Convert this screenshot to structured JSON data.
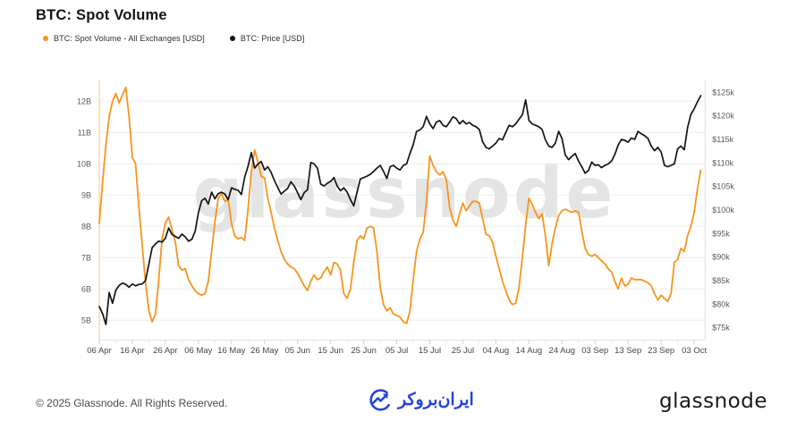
{
  "header": {
    "title": "BTC: Spot Volume"
  },
  "legend": [
    {
      "label": "BTC: Spot Volume - All Exchanges [USD]",
      "color": "#f7941d"
    },
    {
      "label": "BTC: Price [USD]",
      "color": "#141414"
    }
  ],
  "watermark": "glassnode",
  "footer": {
    "copyright": "© 2025 Glassnode. All Rights Reserved.",
    "center_logo_text": "ایران‌بروکر",
    "center_logo_color": "#2342df",
    "brand_wordmark": "glassnode"
  },
  "chart_data": {
    "type": "line",
    "title": "BTC: Spot Volume",
    "grid": "horizontal",
    "legend_position": "top-left",
    "x_unit": "date (2025)",
    "x_ticks": [
      {
        "label": "06 Apr",
        "day": 0
      },
      {
        "label": "16 Apr",
        "day": 10
      },
      {
        "label": "26 Apr",
        "day": 20
      },
      {
        "label": "06 May",
        "day": 30
      },
      {
        "label": "16 May",
        "day": 40
      },
      {
        "label": "26 May",
        "day": 50
      },
      {
        "label": "05 Jun",
        "day": 60
      },
      {
        "label": "15 Jun",
        "day": 70
      },
      {
        "label": "25 Jun",
        "day": 80
      },
      {
        "label": "05 Jul",
        "day": 90
      },
      {
        "label": "15 Jul",
        "day": 100
      },
      {
        "label": "25 Jul",
        "day": 110
      },
      {
        "label": "04 Aug",
        "day": 120
      },
      {
        "label": "14 Aug",
        "day": 130
      },
      {
        "label": "24 Aug",
        "day": 140
      },
      {
        "label": "03 Sep",
        "day": 150
      },
      {
        "label": "13 Sep",
        "day": 160
      },
      {
        "label": "23 Sep",
        "day": 170
      },
      {
        "label": "03 Oct",
        "day": 180
      }
    ],
    "days_total": 182,
    "y_left": {
      "title": "Spot Volume (USD)",
      "min": 5,
      "max": 12.6,
      "ticks": [
        {
          "label": "5B",
          "value": 5
        },
        {
          "label": "6B",
          "value": 6
        },
        {
          "label": "7B",
          "value": 7
        },
        {
          "label": "8B",
          "value": 8
        },
        {
          "label": "9B",
          "value": 9
        },
        {
          "label": "10B",
          "value": 10
        },
        {
          "label": "11B",
          "value": 11
        },
        {
          "label": "12B",
          "value": 12
        }
      ]
    },
    "y_right": {
      "title": "Price (USD)",
      "min": 75,
      "max": 125,
      "ticks": [
        {
          "label": "$75k",
          "value": 75
        },
        {
          "label": "$80k",
          "value": 80
        },
        {
          "label": "$85k",
          "value": 85
        },
        {
          "label": "$90k",
          "value": 90
        },
        {
          "label": "$95k",
          "value": 95
        },
        {
          "label": "$100k",
          "value": 100
        },
        {
          "label": "$105k",
          "value": 105
        },
        {
          "label": "$110k",
          "value": 110
        },
        {
          "label": "$115k",
          "value": 115
        },
        {
          "label": "$120k",
          "value": 120
        },
        {
          "label": "$125k",
          "value": 125
        }
      ]
    },
    "series": [
      {
        "name": "BTC: Spot Volume - All Exchanges [USD]",
        "color": "#f7941d",
        "axis": "left",
        "unit": "billion USD",
        "values": [
          8.1,
          9.4,
          10.6,
          11.5,
          12.0,
          12.25,
          11.95,
          12.2,
          12.45,
          11.5,
          10.2,
          10.0,
          8.6,
          7.4,
          6.2,
          5.3,
          4.95,
          5.2,
          6.3,
          7.6,
          8.1,
          8.3,
          7.9,
          7.5,
          6.75,
          6.6,
          6.65,
          6.3,
          6.1,
          5.95,
          5.85,
          5.8,
          5.85,
          6.25,
          7.2,
          8.15,
          8.9,
          9.05,
          8.8,
          8.85,
          8.1,
          7.7,
          7.6,
          7.65,
          7.55,
          8.55,
          9.75,
          10.45,
          10.05,
          9.6,
          9.55,
          8.9,
          8.45,
          7.95,
          7.55,
          7.2,
          6.95,
          6.8,
          6.7,
          6.65,
          6.5,
          6.3,
          6.1,
          5.95,
          6.25,
          6.45,
          6.3,
          6.35,
          6.55,
          6.7,
          6.45,
          6.85,
          6.8,
          6.6,
          5.85,
          5.7,
          6.0,
          6.85,
          7.55,
          7.7,
          7.6,
          7.95,
          8.0,
          7.95,
          7.2,
          6.05,
          5.5,
          5.3,
          5.4,
          5.2,
          5.15,
          5.1,
          4.95,
          4.9,
          5.3,
          6.3,
          7.2,
          7.6,
          7.8,
          8.8,
          10.25,
          9.95,
          9.75,
          9.65,
          9.75,
          9.5,
          8.6,
          8.2,
          8.0,
          8.4,
          8.75,
          8.5,
          8.65,
          8.8,
          8.8,
          8.75,
          8.25,
          7.75,
          7.7,
          7.5,
          7.05,
          6.65,
          6.25,
          5.95,
          5.65,
          5.5,
          5.55,
          6.05,
          7.0,
          8.05,
          8.9,
          8.7,
          8.45,
          8.25,
          8.4,
          7.7,
          6.75,
          7.45,
          7.95,
          8.35,
          8.5,
          8.55,
          8.5,
          8.45,
          8.5,
          8.45,
          7.85,
          7.3,
          7.1,
          7.05,
          7.1,
          7.0,
          6.9,
          6.8,
          6.65,
          6.55,
          6.25,
          6.0,
          6.35,
          6.1,
          6.15,
          6.35,
          6.3,
          6.3,
          6.3,
          6.25,
          6.2,
          6.1,
          5.85,
          5.65,
          5.8,
          5.7,
          5.6,
          5.85,
          6.85,
          6.95,
          7.3,
          7.2,
          7.7,
          8.0,
          8.45,
          9.2,
          9.8
        ]
      },
      {
        "name": "BTC: Price [USD]",
        "color": "#141414",
        "axis": "right",
        "unit": "thousand USD",
        "values": [
          79.5,
          78.0,
          75.7,
          82.5,
          80.2,
          83.0,
          84.0,
          84.5,
          84.2,
          83.6,
          84.3,
          83.9,
          84.2,
          84.3,
          85.0,
          88.5,
          92.0,
          92.8,
          93.4,
          93.2,
          94.0,
          96.2,
          94.8,
          94.4,
          94.0,
          94.9,
          94.3,
          93.4,
          93.8,
          95.5,
          99.5,
          102.0,
          102.5,
          101.3,
          103.8,
          102.4,
          103.5,
          103.8,
          103.4,
          102.2,
          104.7,
          104.4,
          104.2,
          103.3,
          107.0,
          109.3,
          112.2,
          108.9,
          109.8,
          110.3,
          108.5,
          109.2,
          108.0,
          106.3,
          104.8,
          103.4,
          104.0,
          104.6,
          106.0,
          105.1,
          103.7,
          102.2,
          103.7,
          104.3,
          110.1,
          109.8,
          108.9,
          105.5,
          105.1,
          105.7,
          106.1,
          106.9,
          105.1,
          104.1,
          104.7,
          103.8,
          102.2,
          100.9,
          103.8,
          106.6,
          106.9,
          107.2,
          107.6,
          108.2,
          108.9,
          109.5,
          108.2,
          106.7,
          109.2,
          109.5,
          108.9,
          108.5,
          109.5,
          109.8,
          112.0,
          113.9,
          116.7,
          117.0,
          117.7,
          119.9,
          118.3,
          117.3,
          118.7,
          119.0,
          118.0,
          117.7,
          118.7,
          119.8,
          119.4,
          118.3,
          119.0,
          118.3,
          118.6,
          118.0,
          117.7,
          117.1,
          114.5,
          113.3,
          113.0,
          113.6,
          114.2,
          115.2,
          114.9,
          116.5,
          118.0,
          117.7,
          118.3,
          119.3,
          120.2,
          123.4,
          119.0,
          118.3,
          118.0,
          117.7,
          117.1,
          114.9,
          113.6,
          113.3,
          114.2,
          116.7,
          115.2,
          111.7,
          110.7,
          111.4,
          112.0,
          110.4,
          109.2,
          107.8,
          108.4,
          110.2,
          109.5,
          109.6,
          109.0,
          109.5,
          109.8,
          110.4,
          111.8,
          113.8,
          115.0,
          114.8,
          114.4,
          115.3,
          115.0,
          116.7,
          116.2,
          115.8,
          115.2,
          113.6,
          112.6,
          113.3,
          112.3,
          109.5,
          109.2,
          109.5,
          109.8,
          113.0,
          113.6,
          112.8,
          117.5,
          120.3,
          121.5,
          123.0,
          124.3
        ]
      }
    ]
  }
}
